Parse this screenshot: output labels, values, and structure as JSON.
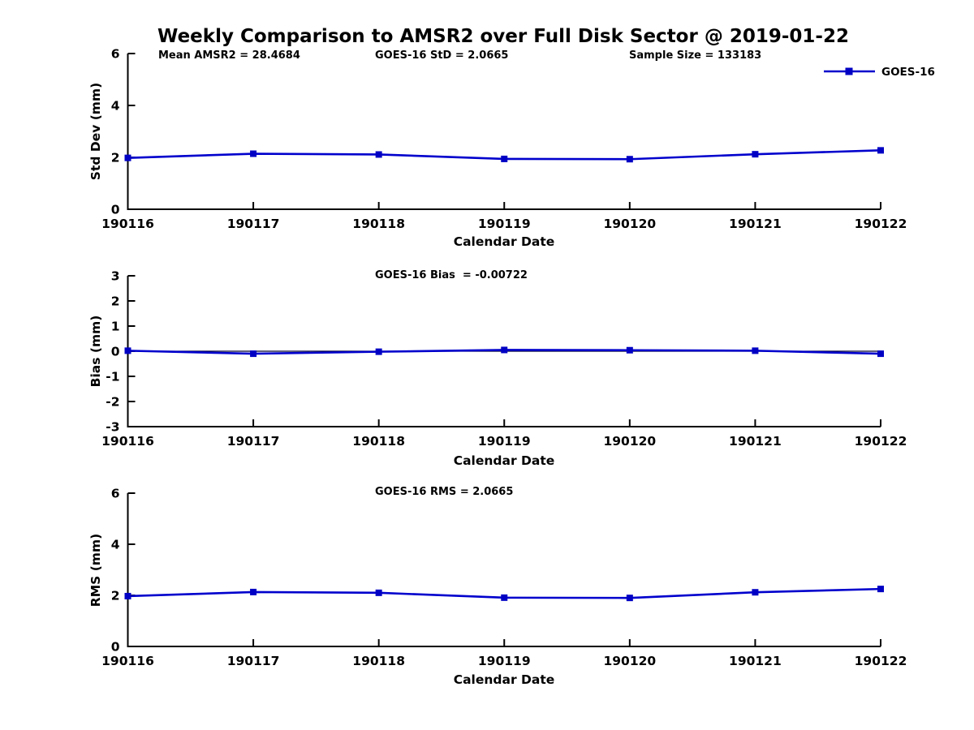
{
  "title": "Weekly Comparison to AMSR2 over Full Disk Sector @ 2019-01-22",
  "colors": {
    "line": "#0000CD",
    "marker": "#0000C4",
    "zero_line": "#000030",
    "axis": "#000000",
    "text": "#000000"
  },
  "chart_data": [
    {
      "type": "line",
      "categories": [
        "190116",
        "190117",
        "190118",
        "190119",
        "190120",
        "190121",
        "190122"
      ],
      "series": [
        {
          "name": "GOES-16",
          "values": [
            1.98,
            2.14,
            2.11,
            1.94,
            1.93,
            2.12,
            2.27
          ]
        }
      ],
      "annotations": [
        "Mean AMSR2 = 28.4684",
        "GOES-16 StD = 2.0665",
        "Sample Size = 133183"
      ],
      "xlabel": "Calendar Date",
      "ylabel": "Std Dev (mm)",
      "ylim": [
        0,
        6
      ],
      "yticks": [
        0,
        2,
        4,
        6
      ],
      "grid": false,
      "marker": "square",
      "legend_position": "top-right",
      "zero_line": false
    },
    {
      "type": "line",
      "categories": [
        "190116",
        "190117",
        "190118",
        "190119",
        "190120",
        "190121",
        "190122"
      ],
      "series": [
        {
          "name": "GOES-16",
          "values": [
            0.02,
            -0.1,
            -0.02,
            0.05,
            0.04,
            0.02,
            -0.1
          ]
        }
      ],
      "annotations": [
        "GOES-16 Bias  = -0.00722"
      ],
      "xlabel": "Calendar Date",
      "ylabel": "Bias (mm)",
      "ylim": [
        -3,
        3
      ],
      "yticks": [
        -3,
        -2,
        -1,
        0,
        1,
        2,
        3
      ],
      "grid": false,
      "marker": "square",
      "legend_position": "none",
      "zero_line": true
    },
    {
      "type": "line",
      "categories": [
        "190116",
        "190117",
        "190118",
        "190119",
        "190120",
        "190121",
        "190122"
      ],
      "series": [
        {
          "name": "GOES-16",
          "values": [
            1.97,
            2.13,
            2.1,
            1.91,
            1.9,
            2.12,
            2.25
          ]
        }
      ],
      "annotations": [
        "GOES-16 RMS = 2.0665"
      ],
      "xlabel": "Calendar Date",
      "ylabel": "RMS (mm)",
      "ylim": [
        0,
        6
      ],
      "yticks": [
        0,
        2,
        4,
        6
      ],
      "grid": false,
      "marker": "square",
      "legend_position": "none",
      "zero_line": false
    }
  ]
}
